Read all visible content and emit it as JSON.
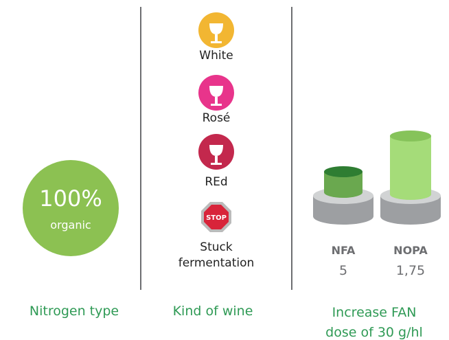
{
  "nitrogen": {
    "badge_value": "100%",
    "badge_label": "organic",
    "caption": "Nitrogen type"
  },
  "wine": {
    "kinds": [
      "White",
      "Rosé",
      "REd",
      "Stuck fermentation"
    ],
    "stop_icon": "STOP",
    "caption": "Kind of wine"
  },
  "fan": {
    "products": [
      {
        "name": "NFA",
        "value": "5"
      },
      {
        "name": "NOPA",
        "value": "1,75"
      }
    ],
    "caption": "Increase FAN dose of 30 g/hl"
  }
}
